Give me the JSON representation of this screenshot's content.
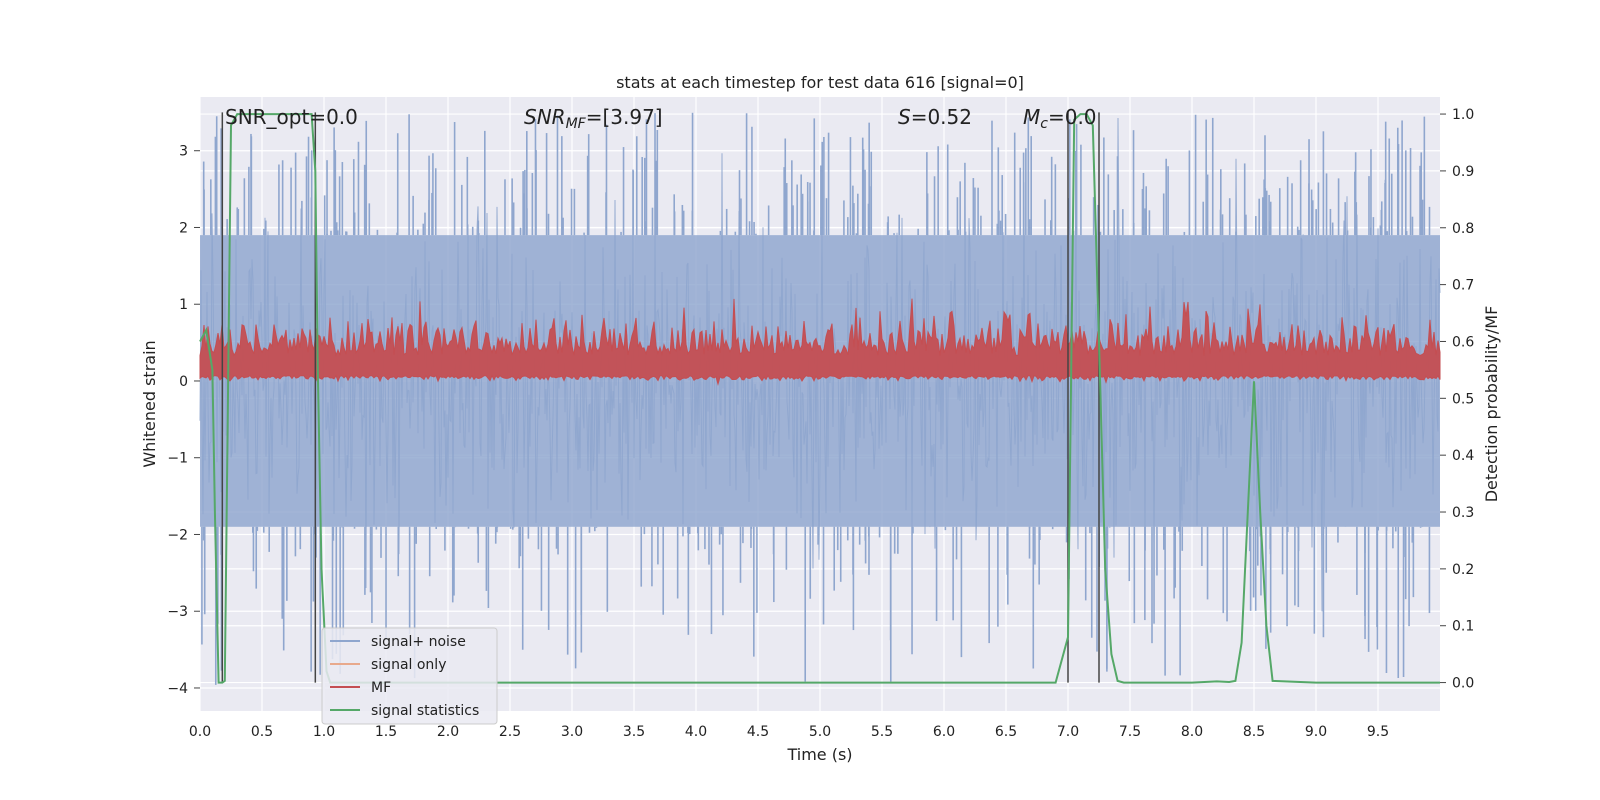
{
  "chart_data": {
    "type": "line",
    "title": "stats at each timestep for test data 616 [signal=0]",
    "xlabel": "Time (s)",
    "ylabel": "Whitened strain",
    "y2label": "Detection probability/MF",
    "xlim": [
      0.0,
      10.0
    ],
    "ylim": [
      -4.3,
      3.7
    ],
    "y2lim": [
      -0.05,
      1.03
    ],
    "x_ticks": [
      "0.0",
      "0.5",
      "1.0",
      "1.5",
      "2.0",
      "2.5",
      "3.0",
      "3.5",
      "4.0",
      "4.5",
      "5.0",
      "5.5",
      "6.0",
      "6.5",
      "7.0",
      "7.5",
      "8.0",
      "8.5",
      "9.0",
      "9.5"
    ],
    "y_ticks": [
      "3",
      "2",
      "1",
      "0",
      "−1",
      "−2",
      "−3",
      "−4"
    ],
    "y2_ticks": [
      "1.0",
      "0.9",
      "0.8",
      "0.7",
      "0.6",
      "0.5",
      "0.4",
      "0.3",
      "0.2",
      "0.1",
      "0.0"
    ],
    "grid": true,
    "legend_position": "lower-left",
    "annotations": {
      "snr_opt": "SNR_opt=0.0",
      "snr_mf_sym": "SNR",
      "snr_mf_sub": "MF",
      "snr_mf_val": "=[3.97]",
      "s_sym": "S",
      "s_val": "=0.52",
      "mc_sym": "M",
      "mc_sub": "c",
      "mc_val": "=0.0"
    },
    "series": [
      {
        "name": "signal+ noise",
        "color": "#8fa6ce",
        "style": "noise band",
        "typical_range": [
          -1.9,
          1.9
        ],
        "extreme_range": [
          -4.0,
          3.5
        ]
      },
      {
        "name": "signal only",
        "color": "#e8a98c",
        "style": "line (not visible)"
      },
      {
        "name": "MF",
        "color": "#c44e52",
        "style": "noise band",
        "y2_range": [
          0.54,
          0.67
        ]
      },
      {
        "name": "signal statistics",
        "color": "#55a868",
        "x": [
          0.0,
          0.05,
          0.1,
          0.12,
          0.15,
          0.18,
          0.2,
          0.25,
          0.3,
          0.5,
          0.7,
          0.9,
          0.93,
          0.95,
          0.98,
          1.02,
          1.05,
          1.5,
          2.0,
          3.0,
          4.0,
          5.0,
          6.0,
          6.9,
          7.0,
          7.05,
          7.1,
          7.15,
          7.2,
          7.25,
          7.3,
          7.35,
          7.4,
          7.45,
          7.5,
          8.0,
          8.2,
          8.3,
          8.35,
          8.4,
          8.45,
          8.5,
          8.55,
          8.6,
          8.65,
          9.0,
          9.5,
          10.0
        ],
        "values": [
          0.6,
          0.62,
          0.55,
          0.3,
          0.0,
          0.0,
          0.003,
          0.98,
          1.0,
          1.0,
          1.0,
          1.0,
          0.9,
          0.55,
          0.2,
          0.02,
          0.0,
          0.0,
          0.0,
          0.0,
          0.0,
          0.0,
          0.0,
          0.0,
          0.08,
          0.99,
          1.0,
          1.0,
          0.98,
          0.6,
          0.2,
          0.05,
          0.003,
          0.0,
          0.0,
          0.0,
          0.002,
          0.001,
          0.003,
          0.07,
          0.3,
          0.53,
          0.3,
          0.1,
          0.003,
          0.0,
          0.0,
          0.0
        ]
      }
    ],
    "vertical_markers": [
      0.18,
      0.93,
      7.0,
      7.25
    ]
  }
}
